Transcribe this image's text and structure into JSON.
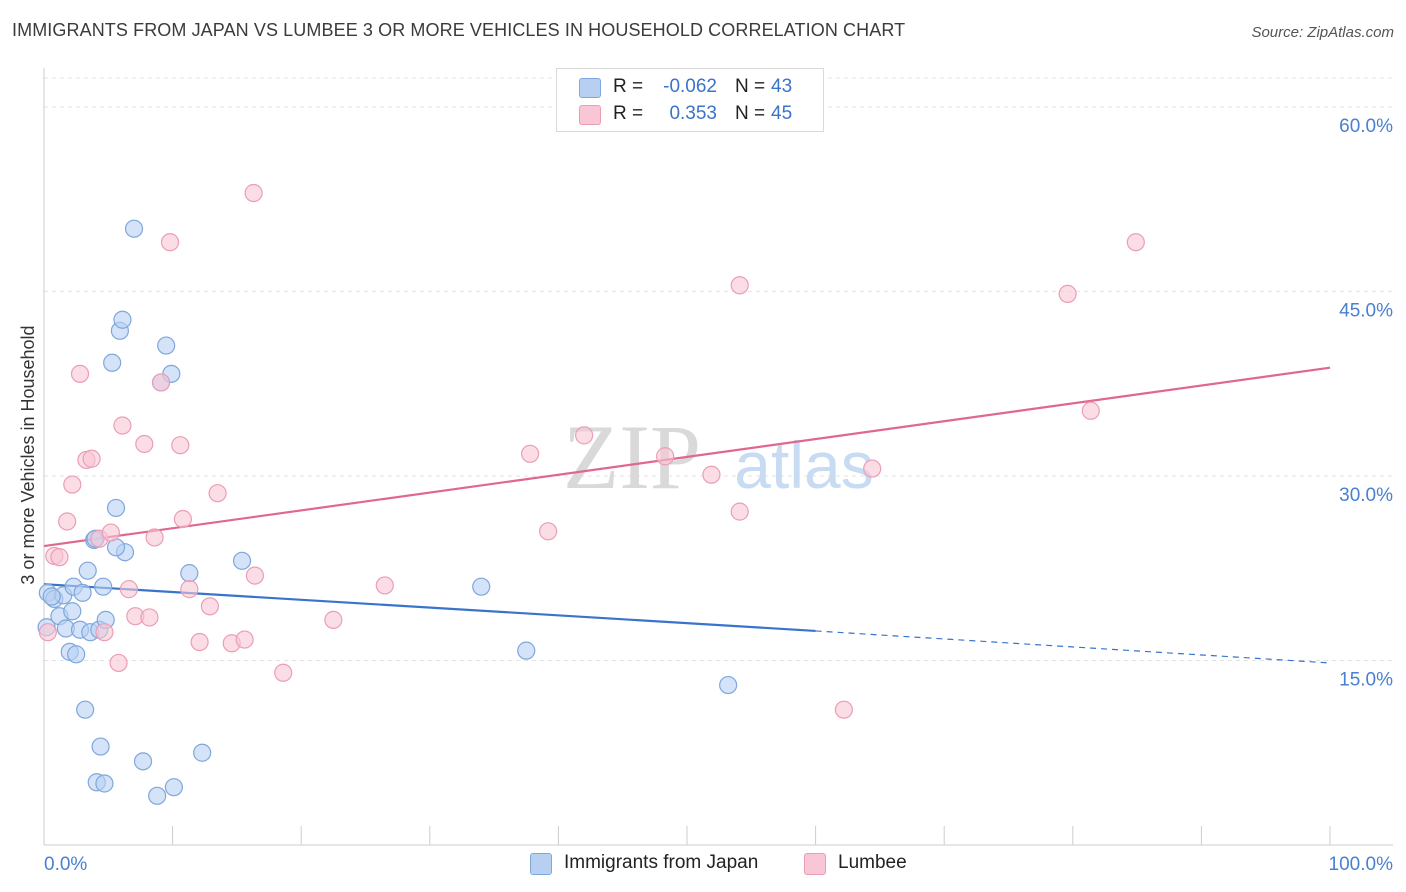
{
  "title": "IMMIGRANTS FROM JAPAN VS LUMBEE 3 OR MORE VEHICLES IN HOUSEHOLD CORRELATION CHART",
  "source": "Source: ZipAtlas.com",
  "watermark": {
    "zip": "ZIP",
    "atlas": "atlas"
  },
  "legend": {
    "r_label": "R =",
    "n_label": "N =",
    "japan": {
      "r": "-0.062",
      "n": "43"
    },
    "lumbee": {
      "r": "0.353",
      "n": "45"
    }
  },
  "bottom_legend": {
    "japan": "Immigrants from Japan",
    "lumbee": "Lumbee"
  },
  "colors": {
    "japan_fill": "#b7d0f2",
    "japan_stroke": "#7fa7dd",
    "japan_line": "#3874cc",
    "lumbee_fill": "#f8c6d5",
    "lumbee_stroke": "#ec9db6",
    "lumbee_line": "#e0678f",
    "tick_label": "#4a80d0"
  },
  "chart_data": {
    "type": "scatter",
    "xlabel": "",
    "ylabel": "3 or more Vehicles in Household",
    "xlim": [
      0,
      100
    ],
    "ylim": [
      0,
      63
    ],
    "x_tick_labels": {
      "min": "0.0%",
      "max": "100.0%"
    },
    "y_ticks": [
      15,
      30,
      45,
      60
    ],
    "y_tick_labels": [
      "15.0%",
      "30.0%",
      "45.0%",
      "60.0%"
    ],
    "series": [
      {
        "name": "Immigrants from Japan",
        "r": -0.062,
        "n": 43,
        "trend": {
          "x0": 0,
          "y0": 21.2,
          "x1": 60,
          "y1": 17.4,
          "dashed_to_x": 100,
          "dashed_to_y": 14.8
        },
        "points": [
          [
            0.3,
            20.5
          ],
          [
            0.8,
            20.0
          ],
          [
            1.2,
            18.6
          ],
          [
            1.5,
            20.3
          ],
          [
            1.7,
            17.6
          ],
          [
            2.0,
            15.7
          ],
          [
            2.2,
            19.0
          ],
          [
            2.3,
            21.0
          ],
          [
            2.5,
            15.5
          ],
          [
            2.8,
            17.5
          ],
          [
            3.0,
            20.5
          ],
          [
            3.2,
            11.0
          ],
          [
            3.4,
            22.3
          ],
          [
            3.6,
            17.3
          ],
          [
            3.9,
            24.8
          ],
          [
            4.1,
            5.1
          ],
          [
            4.3,
            17.5
          ],
          [
            4.4,
            8.0
          ],
          [
            4.7,
            5.0
          ],
          [
            4.8,
            18.3
          ],
          [
            4.6,
            21.0
          ],
          [
            5.3,
            39.2
          ],
          [
            5.6,
            27.4
          ],
          [
            5.9,
            41.8
          ],
          [
            6.1,
            42.7
          ],
          [
            6.3,
            23.8
          ],
          [
            5.6,
            24.2
          ],
          [
            7.0,
            50.1
          ],
          [
            7.7,
            6.8
          ],
          [
            8.8,
            4.0
          ],
          [
            9.1,
            37.6
          ],
          [
            9.5,
            40.6
          ],
          [
            9.9,
            38.3
          ],
          [
            10.1,
            4.7
          ],
          [
            11.3,
            22.1
          ],
          [
            12.3,
            7.5
          ],
          [
            15.4,
            23.1
          ],
          [
            34.0,
            21.0
          ],
          [
            37.5,
            15.8
          ],
          [
            53.2,
            13.0
          ],
          [
            0.2,
            17.7
          ],
          [
            0.6,
            20.2
          ],
          [
            4.0,
            24.9
          ]
        ]
      },
      {
        "name": "Lumbee",
        "r": 0.353,
        "n": 45,
        "trend": {
          "x0": 0,
          "y0": 24.3,
          "x1": 100,
          "y1": 38.8
        },
        "points": [
          [
            0.3,
            17.3
          ],
          [
            0.8,
            23.5
          ],
          [
            1.2,
            23.4
          ],
          [
            1.8,
            26.3
          ],
          [
            2.2,
            29.3
          ],
          [
            2.8,
            38.3
          ],
          [
            3.3,
            31.3
          ],
          [
            3.7,
            31.4
          ],
          [
            4.3,
            24.9
          ],
          [
            4.7,
            17.3
          ],
          [
            5.2,
            25.4
          ],
          [
            5.8,
            14.8
          ],
          [
            6.1,
            34.1
          ],
          [
            6.6,
            20.8
          ],
          [
            7.1,
            18.6
          ],
          [
            7.8,
            32.6
          ],
          [
            8.2,
            18.5
          ],
          [
            8.6,
            25.0
          ],
          [
            9.1,
            37.6
          ],
          [
            9.8,
            49.0
          ],
          [
            10.6,
            32.5
          ],
          [
            10.8,
            26.5
          ],
          [
            11.3,
            20.8
          ],
          [
            12.1,
            16.5
          ],
          [
            12.9,
            19.4
          ],
          [
            13.5,
            28.6
          ],
          [
            14.6,
            16.4
          ],
          [
            15.6,
            16.7
          ],
          [
            16.4,
            21.9
          ],
          [
            16.3,
            53.0
          ],
          [
            18.6,
            14.0
          ],
          [
            22.5,
            18.3
          ],
          [
            26.5,
            21.1
          ],
          [
            37.8,
            31.8
          ],
          [
            39.2,
            25.5
          ],
          [
            42.0,
            33.3
          ],
          [
            48.3,
            31.6
          ],
          [
            51.9,
            30.1
          ],
          [
            54.1,
            45.5
          ],
          [
            54.1,
            27.1
          ],
          [
            62.2,
            11.0
          ],
          [
            64.4,
            30.6
          ],
          [
            79.6,
            44.8
          ],
          [
            81.4,
            35.3
          ],
          [
            84.9,
            49.0
          ]
        ]
      }
    ]
  }
}
